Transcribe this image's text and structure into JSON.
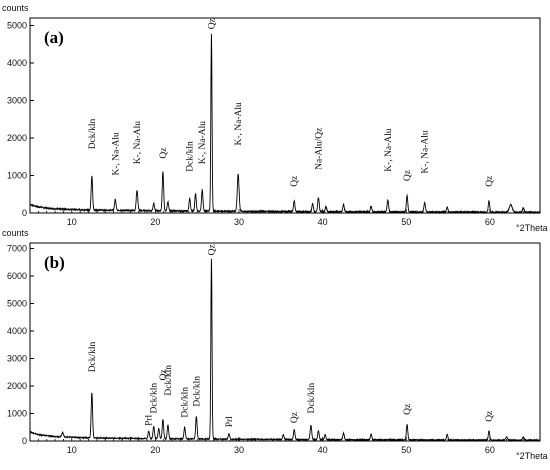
{
  "chart_data": [
    {
      "type": "line",
      "panel_label": "(a)",
      "ylabel": "counts",
      "xlabel": "°2Theta",
      "xlim": [
        5,
        66
      ],
      "ylim": [
        0,
        5200
      ],
      "xticks": [
        "10",
        "20",
        "30",
        "40",
        "50",
        "60"
      ],
      "xtick_values": [
        10,
        20,
        30,
        40,
        50,
        60
      ],
      "yticks": [
        "0",
        "1000",
        "2000",
        "3000",
        "4000",
        "5000"
      ],
      "ytick_values": [
        0,
        1000,
        2000,
        3000,
        4000,
        5000
      ],
      "grid": false,
      "series": [
        {
          "baseline": [
            [
              5,
              230
            ],
            [
              6,
              160
            ],
            [
              8,
              110
            ],
            [
              12,
              80
            ],
            [
              20,
              60
            ],
            [
              30,
              45
            ],
            [
              40,
              35
            ],
            [
              50,
              28
            ],
            [
              60,
              22
            ],
            [
              66,
              20
            ]
          ],
          "peaks": [
            {
              "x": 12.4,
              "y": 920,
              "w": 0.12
            },
            {
              "x": 15.2,
              "y": 290,
              "w": 0.12
            },
            {
              "x": 17.8,
              "y": 540,
              "w": 0.13
            },
            {
              "x": 19.8,
              "y": 200,
              "w": 0.12
            },
            {
              "x": 20.9,
              "y": 1040,
              "w": 0.12
            },
            {
              "x": 21.5,
              "y": 240,
              "w": 0.12
            },
            {
              "x": 24.1,
              "y": 330,
              "w": 0.12
            },
            {
              "x": 24.8,
              "y": 460,
              "w": 0.12
            },
            {
              "x": 25.6,
              "y": 560,
              "w": 0.12
            },
            {
              "x": 26.7,
              "y": 4720,
              "w": 0.1
            },
            {
              "x": 29.9,
              "y": 990,
              "w": 0.15
            },
            {
              "x": 36.6,
              "y": 290,
              "w": 0.12
            },
            {
              "x": 38.8,
              "y": 210,
              "w": 0.12
            },
            {
              "x": 39.5,
              "y": 380,
              "w": 0.13
            },
            {
              "x": 40.4,
              "y": 140,
              "w": 0.12
            },
            {
              "x": 42.5,
              "y": 200,
              "w": 0.12
            },
            {
              "x": 45.8,
              "y": 150,
              "w": 0.12
            },
            {
              "x": 47.8,
              "y": 310,
              "w": 0.13
            },
            {
              "x": 50.1,
              "y": 440,
              "w": 0.12
            },
            {
              "x": 52.2,
              "y": 250,
              "w": 0.13
            },
            {
              "x": 54.9,
              "y": 140,
              "w": 0.12
            },
            {
              "x": 59.9,
              "y": 300,
              "w": 0.12
            },
            {
              "x": 62.5,
              "y": 200,
              "w": 0.25
            },
            {
              "x": 64.0,
              "y": 110,
              "w": 0.15
            }
          ]
        }
      ],
      "annotations": [
        {
          "text": "Dck/kln",
          "x": 12.4,
          "y": 1700
        },
        {
          "text": "K-, Na-Alu",
          "x": 15.2,
          "y": 1000
        },
        {
          "text": "K-, Na-Alu",
          "x": 17.8,
          "y": 1300
        },
        {
          "text": "Qz",
          "x": 20.9,
          "y": 1450
        },
        {
          "text": "Dck/kln",
          "x": 24.1,
          "y": 1100
        },
        {
          "text": "K-, Na-Alu",
          "x": 25.6,
          "y": 1300
        },
        {
          "text": "Qz",
          "x": 26.7,
          "y": 4900
        },
        {
          "text": "K-, Na-Alu",
          "x": 29.9,
          "y": 1800
        },
        {
          "text": "Qz",
          "x": 36.6,
          "y": 700
        },
        {
          "text": "Na-Alu/Qz",
          "x": 39.5,
          "y": 1150
        },
        {
          "text": "K-, Na-Alu",
          "x": 47.8,
          "y": 1100
        },
        {
          "text": "Qz",
          "x": 50.1,
          "y": 850
        },
        {
          "text": "K-, Na-Alu",
          "x": 52.2,
          "y": 1050
        },
        {
          "text": "Qz",
          "x": 59.9,
          "y": 700
        }
      ]
    },
    {
      "type": "line",
      "panel_label": "(b)",
      "ylabel": "counts",
      "xlabel": "°2Theta",
      "xlim": [
        5,
        66
      ],
      "ylim": [
        0,
        7200
      ],
      "xticks": [
        "10",
        "20",
        "30",
        "40",
        "50",
        "60"
      ],
      "xtick_values": [
        10,
        20,
        30,
        40,
        50,
        60
      ],
      "yticks": [
        "0",
        "1000",
        "2000",
        "3000",
        "4000",
        "5000",
        "6000",
        "7000"
      ],
      "ytick_values": [
        0,
        1000,
        2000,
        3000,
        4000,
        5000,
        6000,
        7000
      ],
      "grid": false,
      "series": [
        {
          "baseline": [
            [
              5,
              330
            ],
            [
              6,
              230
            ],
            [
              8,
              160
            ],
            [
              12,
              115
            ],
            [
              20,
              85
            ],
            [
              30,
              65
            ],
            [
              40,
              50
            ],
            [
              50,
              40
            ],
            [
              60,
              32
            ],
            [
              66,
              28
            ]
          ],
          "peaks": [
            {
              "x": 8.9,
              "y": 150,
              "w": 0.15
            },
            {
              "x": 12.4,
              "y": 1640,
              "w": 0.12
            },
            {
              "x": 19.2,
              "y": 270,
              "w": 0.12
            },
            {
              "x": 19.8,
              "y": 450,
              "w": 0.12
            },
            {
              "x": 20.4,
              "y": 380,
              "w": 0.12
            },
            {
              "x": 20.9,
              "y": 700,
              "w": 0.12
            },
            {
              "x": 21.5,
              "y": 500,
              "w": 0.12
            },
            {
              "x": 23.5,
              "y": 420,
              "w": 0.12
            },
            {
              "x": 24.9,
              "y": 830,
              "w": 0.12
            },
            {
              "x": 26.7,
              "y": 6550,
              "w": 0.1
            },
            {
              "x": 28.8,
              "y": 200,
              "w": 0.12
            },
            {
              "x": 35.3,
              "y": 170,
              "w": 0.12
            },
            {
              "x": 36.6,
              "y": 360,
              "w": 0.12
            },
            {
              "x": 38.6,
              "y": 520,
              "w": 0.13
            },
            {
              "x": 39.5,
              "y": 330,
              "w": 0.12
            },
            {
              "x": 40.3,
              "y": 180,
              "w": 0.12
            },
            {
              "x": 42.5,
              "y": 240,
              "w": 0.12
            },
            {
              "x": 45.8,
              "y": 200,
              "w": 0.12
            },
            {
              "x": 50.1,
              "y": 560,
              "w": 0.12
            },
            {
              "x": 54.9,
              "y": 200,
              "w": 0.12
            },
            {
              "x": 59.9,
              "y": 330,
              "w": 0.12
            },
            {
              "x": 62.0,
              "y": 120,
              "w": 0.15
            },
            {
              "x": 64.0,
              "y": 110,
              "w": 0.15
            }
          ]
        }
      ],
      "annotations": [
        {
          "text": "Dck/kln",
          "x": 12.4,
          "y": 2500
        },
        {
          "text": "Prl",
          "x": 19.2,
          "y": 550
        },
        {
          "text": "Dck/kln",
          "x": 19.8,
          "y": 1000
        },
        {
          "text": "Qz",
          "x": 20.9,
          "y": 2200
        },
        {
          "text": "Dck/kln",
          "x": 21.5,
          "y": 1650
        },
        {
          "text": "Dck/kln",
          "x": 23.5,
          "y": 850
        },
        {
          "text": "Dck/kln",
          "x": 24.9,
          "y": 1250
        },
        {
          "text": "Qz",
          "x": 26.7,
          "y": 6750
        },
        {
          "text": "Prl",
          "x": 28.8,
          "y": 500
        },
        {
          "text": "Qz",
          "x": 36.6,
          "y": 650
        },
        {
          "text": "Dck/kln",
          "x": 38.6,
          "y": 1000
        },
        {
          "text": "Qz",
          "x": 50.1,
          "y": 950
        },
        {
          "text": "Qz",
          "x": 59.9,
          "y": 700
        }
      ]
    }
  ]
}
